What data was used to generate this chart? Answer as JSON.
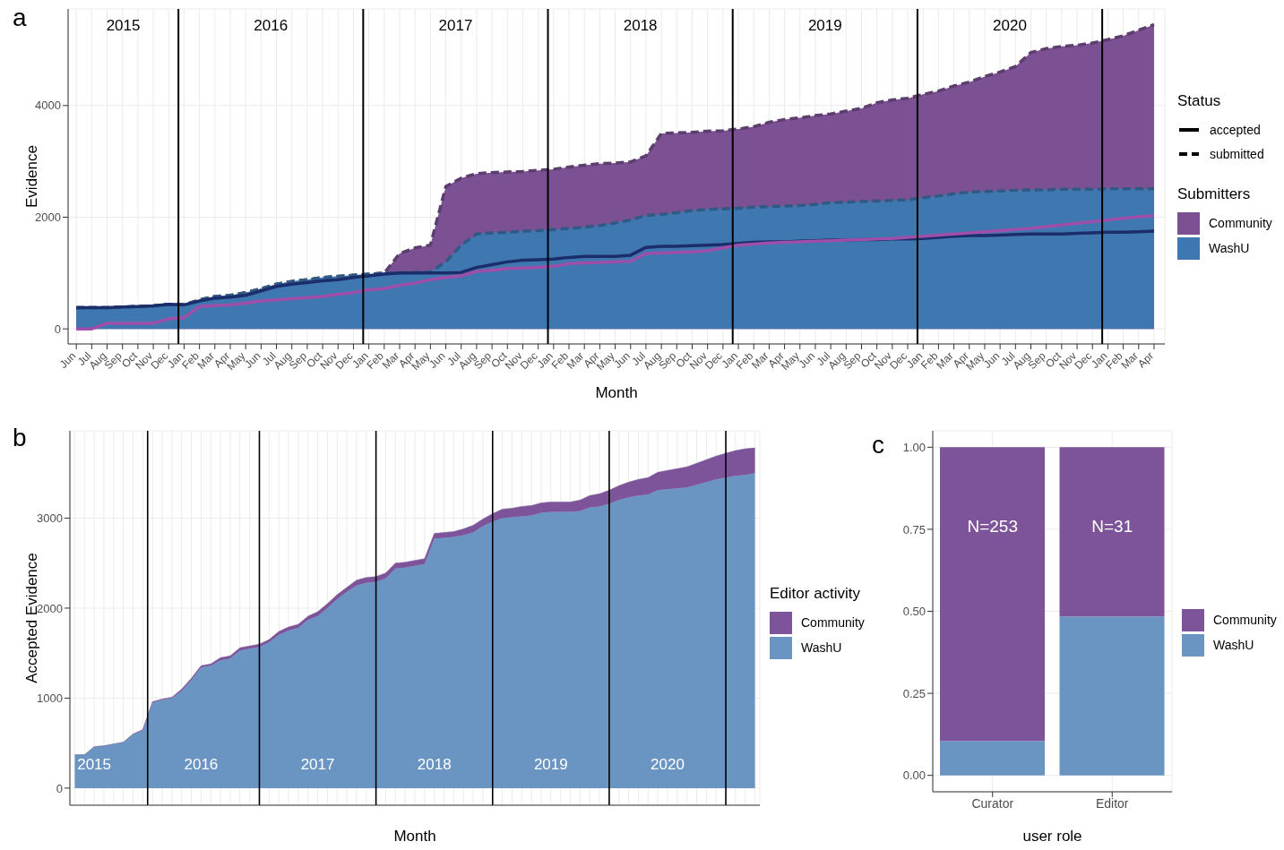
{
  "chart_data": [
    {
      "type": "area",
      "xlabel": "Month",
      "ylabel": "Evidence",
      "legend_title": "Submitters",
      "legend": "right",
      "grid": true,
      "marker": "none",
      "x": [
        "2015-06",
        "2015-07",
        "2015-08",
        "2015-09",
        "2015-10",
        "2015-11",
        "2015-12",
        "2016-01",
        "2016-02",
        "2016-03",
        "2016-04",
        "2016-05",
        "2016-06",
        "2016-07",
        "2016-08",
        "2016-09",
        "2016-10",
        "2016-11",
        "2016-12",
        "2017-01",
        "2017-02",
        "2017-03",
        "2017-04",
        "2017-05",
        "2017-06",
        "2017-07",
        "2017-08",
        "2017-09",
        "2017-10",
        "2017-11",
        "2017-12",
        "2018-01",
        "2018-02",
        "2018-03",
        "2018-04",
        "2018-05",
        "2018-06",
        "2018-07",
        "2018-08",
        "2018-09",
        "2018-10",
        "2018-11",
        "2018-12",
        "2019-01",
        "2019-02",
        "2019-03",
        "2019-04",
        "2019-05",
        "2019-06",
        "2019-07",
        "2019-08",
        "2019-09",
        "2019-10",
        "2019-11",
        "2019-12",
        "2020-01",
        "2020-02",
        "2020-03",
        "2020-04",
        "2020-05",
        "2020-06",
        "2020-07",
        "2020-08",
        "2020-09",
        "2020-10",
        "2020-11",
        "2020-12",
        "2021-01",
        "2021-02",
        "2021-03",
        "2021-04"
      ],
      "xlim": [
        "2015-05-15",
        "2021-04-22"
      ],
      "xticks": [
        {
          "value": "2015-06",
          "label": "Jun"
        },
        {
          "value": "2015-07",
          "label": "Jul"
        },
        {
          "value": "2015-08",
          "label": "Aug"
        },
        {
          "value": "2015-09",
          "label": "Sep"
        },
        {
          "value": "2015-10",
          "label": "Oct"
        },
        {
          "value": "2015-11",
          "label": "Nov"
        },
        {
          "value": "2015-12",
          "label": "Dec"
        },
        {
          "value": "2016-01",
          "label": "Jan"
        },
        {
          "value": "2016-02",
          "label": "Feb"
        },
        {
          "value": "2016-03",
          "label": "Mar"
        },
        {
          "value": "2016-04",
          "label": "Apr"
        },
        {
          "value": "2016-05",
          "label": "May"
        },
        {
          "value": "2016-06",
          "label": "Jun"
        },
        {
          "value": "2016-07",
          "label": "Jul"
        },
        {
          "value": "2016-08",
          "label": "Aug"
        },
        {
          "value": "2016-09",
          "label": "Sep"
        },
        {
          "value": "2016-10",
          "label": "Oct"
        },
        {
          "value": "2016-11",
          "label": "Nov"
        },
        {
          "value": "2016-12",
          "label": "Dec"
        },
        {
          "value": "2017-01",
          "label": "Jan"
        },
        {
          "value": "2017-02",
          "label": "Feb"
        },
        {
          "value": "2017-03",
          "label": "Mar"
        },
        {
          "value": "2017-04",
          "label": "Apr"
        },
        {
          "value": "2017-05",
          "label": "May"
        },
        {
          "value": "2017-06",
          "label": "Jun"
        },
        {
          "value": "2017-07",
          "label": "Jul"
        },
        {
          "value": "2017-08",
          "label": "Aug"
        },
        {
          "value": "2017-09",
          "label": "Sep"
        },
        {
          "value": "2017-10",
          "label": "Oct"
        },
        {
          "value": "2017-11",
          "label": "Nov"
        },
        {
          "value": "2017-12",
          "label": "Dec"
        },
        {
          "value": "2018-01",
          "label": "Jan"
        },
        {
          "value": "2018-02",
          "label": "Feb"
        },
        {
          "value": "2018-03",
          "label": "Mar"
        },
        {
          "value": "2018-04",
          "label": "Apr"
        },
        {
          "value": "2018-05",
          "label": "May"
        },
        {
          "value": "2018-06",
          "label": "Jun"
        },
        {
          "value": "2018-07",
          "label": "Jul"
        },
        {
          "value": "2018-08",
          "label": "Aug"
        },
        {
          "value": "2018-09",
          "label": "Sep"
        },
        {
          "value": "2018-10",
          "label": "Oct"
        },
        {
          "value": "2018-11",
          "label": "Nov"
        },
        {
          "value": "2018-12",
          "label": "Dec"
        },
        {
          "value": "2019-01",
          "label": "Jan"
        },
        {
          "value": "2019-02",
          "label": "Feb"
        },
        {
          "value": "2019-03",
          "label": "Mar"
        },
        {
          "value": "2019-04",
          "label": "Apr"
        },
        {
          "value": "2019-05",
          "label": "May"
        },
        {
          "value": "2019-06",
          "label": "Jun"
        },
        {
          "value": "2019-07",
          "label": "Jul"
        },
        {
          "value": "2019-08",
          "label": "Aug"
        },
        {
          "value": "2019-09",
          "label": "Sep"
        },
        {
          "value": "2019-10",
          "label": "Oct"
        },
        {
          "value": "2019-11",
          "label": "Nov"
        },
        {
          "value": "2019-12",
          "label": "Dec"
        },
        {
          "value": "2020-01",
          "label": "Jan"
        },
        {
          "value": "2020-02",
          "label": "Feb"
        },
        {
          "value": "2020-03",
          "label": "Mar"
        },
        {
          "value": "2020-04",
          "label": "Apr"
        },
        {
          "value": "2020-05",
          "label": "May"
        },
        {
          "value": "2020-06",
          "label": "Jun"
        },
        {
          "value": "2020-07",
          "label": "Jul"
        },
        {
          "value": "2020-08",
          "label": "Aug"
        },
        {
          "value": "2020-09",
          "label": "Sep"
        },
        {
          "value": "2020-10",
          "label": "Oct"
        },
        {
          "value": "2020-11",
          "label": "Nov"
        },
        {
          "value": "2020-12",
          "label": "Dec"
        },
        {
          "value": "2021-01",
          "label": "Jan"
        },
        {
          "value": "2021-02",
          "label": "Feb"
        },
        {
          "value": "2021-03",
          "label": "Mar"
        },
        {
          "value": "2021-04",
          "label": "Apr"
        }
      ],
      "ylim": [
        -270,
        5730
      ],
      "yticks": [
        0,
        2000,
        4000
      ],
      "series": [
        {
          "name": "Community",
          "line_style": "dashed",
          "color": "#7b5193",
          "values": [
            380,
            380,
            380,
            390,
            400,
            410,
            440,
            430,
            520,
            580,
            600,
            650,
            720,
            800,
            850,
            880,
            920,
            940,
            960,
            980,
            1000,
            1350,
            1450,
            1500,
            2550,
            2700,
            2780,
            2800,
            2810,
            2820,
            2840,
            2860,
            2900,
            2930,
            2960,
            2970,
            2990,
            3100,
            3500,
            3510,
            3520,
            3540,
            3550,
            3580,
            3620,
            3700,
            3750,
            3780,
            3820,
            3850,
            3900,
            3950,
            4050,
            4100,
            4130,
            4200,
            4260,
            4350,
            4420,
            4520,
            4600,
            4700,
            4950,
            5020,
            5060,
            5080,
            5120,
            5180,
            5250,
            5350,
            5450
          ]
        },
        {
          "name": "WashU",
          "line_style": "dashed",
          "color": "#3f78b0",
          "values": [
            380,
            380,
            380,
            390,
            400,
            410,
            440,
            430,
            520,
            580,
            600,
            650,
            720,
            800,
            850,
            880,
            920,
            940,
            960,
            980,
            1000,
            1000,
            1010,
            1020,
            1200,
            1500,
            1700,
            1720,
            1730,
            1750,
            1760,
            1780,
            1800,
            1820,
            1850,
            1900,
            1950,
            2030,
            2050,
            2080,
            2120,
            2140,
            2150,
            2160,
            2180,
            2190,
            2200,
            2210,
            2230,
            2260,
            2270,
            2280,
            2290,
            2300,
            2310,
            2350,
            2380,
            2420,
            2450,
            2460,
            2470,
            2480,
            2490,
            2490,
            2500,
            2500,
            2500,
            2510,
            2510,
            2510,
            2510
          ]
        },
        {
          "type": "line",
          "line_style": "solid",
          "color": "#1c2d6b",
          "values": [
            380,
            380,
            380,
            390,
            400,
            410,
            440,
            430,
            500,
            550,
            570,
            600,
            680,
            760,
            800,
            830,
            860,
            880,
            920,
            950,
            980,
            1000,
            1000,
            1000,
            1000,
            1010,
            1100,
            1150,
            1200,
            1230,
            1240,
            1250,
            1280,
            1300,
            1300,
            1300,
            1320,
            1460,
            1480,
            1480,
            1490,
            1500,
            1510,
            1530,
            1550,
            1560,
            1560,
            1570,
            1580,
            1590,
            1590,
            1600,
            1600,
            1610,
            1610,
            1620,
            1640,
            1660,
            1670,
            1670,
            1680,
            1690,
            1700,
            1700,
            1700,
            1710,
            1720,
            1730,
            1730,
            1740,
            1750
          ]
        },
        {
          "type": "line",
          "line_style": "solid",
          "color": "#9e4fa9",
          "values": [
            0,
            0,
            100,
            100,
            100,
            100,
            180,
            200,
            400,
            420,
            430,
            460,
            500,
            520,
            540,
            560,
            580,
            620,
            650,
            700,
            720,
            780,
            820,
            880,
            920,
            950,
            1030,
            1050,
            1080,
            1090,
            1100,
            1120,
            1170,
            1180,
            1190,
            1200,
            1210,
            1350,
            1360,
            1370,
            1380,
            1400,
            1450,
            1500,
            1520,
            1540,
            1550,
            1560,
            1570,
            1580,
            1590,
            1600,
            1610,
            1620,
            1640,
            1660,
            1680,
            1700,
            1720,
            1740,
            1760,
            1780,
            1800,
            1830,
            1860,
            1890,
            1920,
            1950,
            1980,
            2010,
            2030
          ]
        }
      ],
      "ref_lines": [
        {
          "axis": "x",
          "value": "2015-12-20"
        },
        {
          "axis": "x",
          "value": "2016-12-20"
        },
        {
          "axis": "x",
          "value": "2017-12-20"
        },
        {
          "axis": "x",
          "value": "2018-12-20"
        },
        {
          "axis": "x",
          "value": "2019-12-20"
        },
        {
          "axis": "x",
          "value": "2020-12-20"
        }
      ],
      "annotations": [
        "a",
        "2015",
        "2016",
        "2017",
        "2018",
        "2019",
        "2020",
        "Status",
        "accepted",
        "submitted"
      ]
    },
    {
      "type": "area",
      "stacked": true,
      "xlabel": "Month",
      "ylabel": "Accepted Evidence",
      "legend_title": "Editor activity",
      "legend": "right",
      "grid": true,
      "marker": "none",
      "categories": [
        null,
        null,
        "2015",
        null,
        null,
        null,
        null,
        null,
        null,
        null,
        null,
        null,
        null,
        "2016",
        null,
        null,
        null,
        null,
        null,
        null,
        null,
        null,
        null,
        null,
        null,
        "2017",
        null,
        null,
        null,
        null,
        null,
        null,
        null,
        null,
        null,
        null,
        null,
        "2018",
        null,
        null,
        null,
        null,
        null,
        null,
        null,
        null,
        null,
        null,
        null,
        "2019",
        null,
        null,
        null,
        null,
        null,
        null,
        null,
        null,
        null,
        null,
        null,
        "2020",
        null,
        null,
        null,
        null,
        null,
        null,
        null,
        null,
        null
      ],
      "ylim": [
        -190,
        3970
      ],
      "yticks": [
        0,
        1000,
        2000,
        3000
      ],
      "series": [
        {
          "name": "WashU",
          "color": "#6a95c3",
          "values": [
            370,
            370,
            460,
            470,
            490,
            510,
            600,
            640,
            950,
            980,
            1000,
            1080,
            1200,
            1340,
            1360,
            1420,
            1440,
            1530,
            1550,
            1570,
            1620,
            1700,
            1750,
            1780,
            1870,
            1910,
            2000,
            2100,
            2180,
            2250,
            2280,
            2290,
            2330,
            2440,
            2450,
            2470,
            2490,
            2770,
            2780,
            2790,
            2810,
            2840,
            2910,
            2960,
            3000,
            3010,
            3020,
            3030,
            3060,
            3070,
            3070,
            3070,
            3080,
            3120,
            3130,
            3160,
            3200,
            3230,
            3250,
            3260,
            3310,
            3320,
            3330,
            3340,
            3370,
            3400,
            3430,
            3450,
            3470,
            3480,
            3500
          ]
        },
        {
          "name": "Community",
          "color": "#7d5499",
          "values": [
            0,
            0,
            0,
            0,
            0,
            0,
            0,
            10,
            10,
            10,
            10,
            20,
            20,
            20,
            20,
            30,
            30,
            30,
            30,
            30,
            30,
            40,
            40,
            40,
            40,
            50,
            50,
            50,
            50,
            60,
            60,
            60,
            60,
            60,
            60,
            60,
            60,
            60,
            60,
            60,
            70,
            80,
            80,
            90,
            100,
            100,
            110,
            110,
            110,
            110,
            110,
            110,
            120,
            130,
            140,
            150,
            160,
            170,
            180,
            190,
            200,
            210,
            220,
            230,
            240,
            250,
            260,
            270,
            280,
            290,
            280
          ]
        }
      ],
      "annotations": [
        "b"
      ]
    },
    {
      "type": "bar",
      "stacked": true,
      "xlabel": "user role",
      "legend": "right",
      "grid": true,
      "categories": [
        "Curator",
        "Editor"
      ],
      "ylim": [
        -0.05,
        1.05
      ],
      "yticks": [
        {
          "value": 0,
          "label": "0.00"
        },
        {
          "value": 0.25,
          "label": "0.25"
        },
        {
          "value": 0.5,
          "label": "0.50"
        },
        {
          "value": 0.75,
          "label": "0.75"
        },
        {
          "value": 1,
          "label": "1.00"
        }
      ],
      "series": [
        {
          "name": "WashU",
          "color": "#6a95c3",
          "values": [
            0.105,
            0.484
          ]
        },
        {
          "name": "Community",
          "color": "#7d5499",
          "values": [
            0.895,
            0.516
          ]
        }
      ],
      "annotations": [
        "c",
        "N=253",
        "N=31"
      ]
    }
  ]
}
